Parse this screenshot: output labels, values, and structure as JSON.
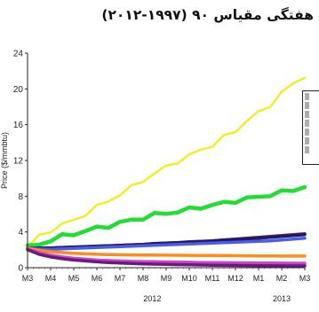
{
  "page": {
    "title": "هفتگی مقیاس ۹۰ (۱۹۹۷-۲۰۱۲)"
  },
  "chart_data": {
    "type": "line",
    "xlabel": "",
    "ylabel": "Price ($/mmbtu)",
    "ylim": [
      0,
      24
    ],
    "yticks": [
      "0",
      "4",
      "8",
      "12",
      "16",
      "20",
      "24"
    ],
    "xticks": [
      "M3",
      "M4",
      "M5",
      "M6",
      "M7",
      "M8",
      "M9",
      "M10",
      "M11",
      "M12",
      "M1",
      "M2",
      "M3"
    ],
    "year_labels": [
      {
        "label": "2012",
        "month_index": 5.4
      },
      {
        "label": "2013",
        "month_index": 11.0
      }
    ],
    "grid": false,
    "legend": "right",
    "x": [
      0,
      0.5,
      1,
      1.5,
      2,
      2.5,
      3,
      3.5,
      4,
      4.5,
      5,
      5.5,
      6,
      6.5,
      7,
      7.5,
      8,
      8.5,
      9,
      9.5,
      10,
      10.5,
      11,
      11.5,
      12
    ],
    "series": [
      {
        "color": "#f2ee22",
        "values": [
          2.3,
          3.5,
          4.2,
          4.8,
          5.3,
          6.0,
          6.8,
          7.5,
          8.2,
          9.0,
          9.8,
          10.5,
          11.3,
          11.9,
          12.5,
          13.2,
          13.7,
          14.6,
          15.3,
          16.5,
          17.3,
          18.2,
          19.6,
          20.5,
          21.5
        ]
      },
      {
        "color": "#22dd33",
        "values": [
          2.3,
          2.6,
          3.1,
          3.5,
          3.8,
          4.1,
          4.4,
          4.7,
          5.0,
          5.3,
          5.6,
          5.9,
          6.1,
          6.3,
          6.5,
          6.8,
          7.0,
          7.2,
          7.5,
          7.7,
          7.9,
          8.2,
          8.4,
          8.7,
          9.1
        ]
      },
      {
        "color": "#7b1a14",
        "values": [
          2.2,
          2.2,
          2.2,
          2.25,
          2.3,
          2.35,
          2.4,
          2.45,
          2.5,
          2.55,
          2.6,
          2.7,
          2.75,
          2.8,
          2.9,
          2.95,
          3.0,
          3.1,
          3.2,
          3.3,
          3.4,
          3.5,
          3.6,
          3.7,
          3.8
        ]
      },
      {
        "color": "#1a1a70",
        "values": [
          2.2,
          2.2,
          2.2,
          2.25,
          2.3,
          2.35,
          2.4,
          2.45,
          2.5,
          2.55,
          2.6,
          2.7,
          2.75,
          2.8,
          2.85,
          2.9,
          3.0,
          3.1,
          3.15,
          3.2,
          3.3,
          3.4,
          3.5,
          3.6,
          3.7
        ]
      },
      {
        "color": "#4a5ce8",
        "values": [
          2.2,
          2.1,
          2.05,
          2.1,
          2.15,
          2.2,
          2.25,
          2.3,
          2.35,
          2.4,
          2.45,
          2.5,
          2.55,
          2.6,
          2.65,
          2.7,
          2.75,
          2.8,
          2.85,
          2.9,
          2.95,
          3.0,
          3.1,
          3.2,
          3.3
        ]
      },
      {
        "color": "#ff8c1a",
        "values": [
          2.2,
          1.95,
          1.8,
          1.7,
          1.62,
          1.55,
          1.5,
          1.47,
          1.45,
          1.43,
          1.42,
          1.41,
          1.4,
          1.39,
          1.38,
          1.37,
          1.36,
          1.35,
          1.34,
          1.33,
          1.32,
          1.31,
          1.3,
          1.3,
          1.3
        ]
      },
      {
        "color": "#cc44cc",
        "values": [
          2.1,
          1.7,
          1.4,
          1.2,
          1.05,
          0.95,
          0.85,
          0.8,
          0.75,
          0.7,
          0.68,
          0.66,
          0.64,
          0.62,
          0.6,
          0.58,
          0.57,
          0.56,
          0.55,
          0.54,
          0.53,
          0.52,
          0.51,
          0.5,
          0.5
        ]
      },
      {
        "color": "#6a1a7a",
        "values": [
          2.0,
          1.5,
          1.2,
          1.0,
          0.85,
          0.75,
          0.65,
          0.58,
          0.52,
          0.47,
          0.43,
          0.4,
          0.37,
          0.34,
          0.32,
          0.3,
          0.28,
          0.26,
          0.25,
          0.24,
          0.23,
          0.22,
          0.21,
          0.2,
          0.2
        ]
      }
    ]
  }
}
